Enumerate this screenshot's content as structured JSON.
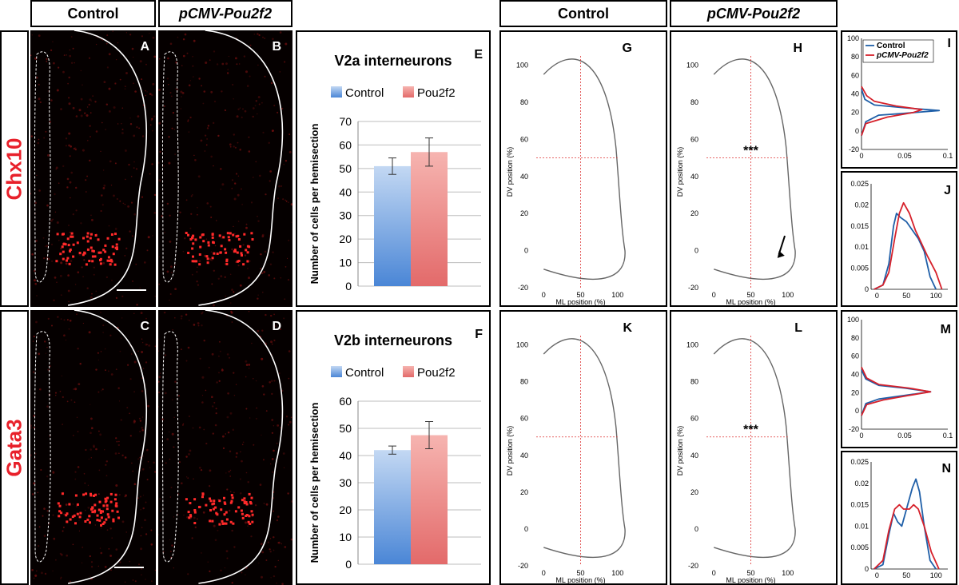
{
  "headers": {
    "micro_control": "Control",
    "micro_pou2f2": "pCMV-Pou2f2",
    "density_control": "Control",
    "density_pou2f2": "pCMV-Pou2f2"
  },
  "rows": {
    "top": "Chx10",
    "bottom": "Gata3"
  },
  "panels": {
    "A": "A",
    "B": "B",
    "C": "C",
    "D": "D",
    "E": "E",
    "F": "F",
    "G": "G",
    "H": "H",
    "I": "I",
    "J": "J",
    "K": "K",
    "L": "L",
    "M": "M",
    "N": "N"
  },
  "colors": {
    "control": "#4a86d6",
    "pou2f2": "#e36a6a",
    "red_label": "#e8202a",
    "line_control": "#1f5fa8",
    "line_pou2f2": "#d6202a"
  },
  "chart_data": [
    {
      "id": "E",
      "type": "bar",
      "title": "V2a interneurons",
      "categories": [
        "Control",
        "Pou2f2"
      ],
      "legend": [
        "Control",
        "Pou2f2"
      ],
      "values": [
        51,
        57
      ],
      "errors": [
        3.5,
        6
      ],
      "ylabel": "Number of cells per hemisection",
      "ylim": [
        0,
        70
      ],
      "yticks": [
        "0",
        "10",
        "20",
        "30",
        "40",
        "50",
        "60",
        "70"
      ]
    },
    {
      "id": "F",
      "type": "bar",
      "title": "V2b interneurons",
      "categories": [
        "Control",
        "Pou2f2"
      ],
      "legend": [
        "Control",
        "Pou2f2"
      ],
      "values": [
        42,
        47.5
      ],
      "errors": [
        1.5,
        5
      ],
      "ylabel": "Number of cells per hemisection",
      "ylim": [
        0,
        60
      ],
      "yticks": [
        "0",
        "10",
        "20",
        "30",
        "40",
        "50",
        "60"
      ]
    },
    {
      "id": "density",
      "type": "heatmap",
      "xlabel": "ML position (%)",
      "ylabel": "DV position (%)",
      "xticks": [
        "0",
        "50",
        "100"
      ],
      "yticks": [
        "-20",
        "0",
        "20",
        "40",
        "60",
        "80",
        "100"
      ],
      "annotation": "***"
    },
    {
      "id": "I",
      "type": "line",
      "series": [
        {
          "name": "Control",
          "points": [
            [
              0,
              -5
            ],
            [
              0.005,
              10
            ],
            [
              0.02,
              17
            ],
            [
              0.05,
              19
            ],
            [
              0.09,
              22
            ],
            [
              0.05,
              25
            ],
            [
              0.015,
              28
            ],
            [
              0.004,
              34
            ],
            [
              0,
              45
            ]
          ]
        },
        {
          "name": "pCMV-Pou2f2",
          "points": [
            [
              0,
              -5
            ],
            [
              0.005,
              8
            ],
            [
              0.03,
              15
            ],
            [
              0.06,
              20
            ],
            [
              0.07,
              23
            ],
            [
              0.04,
              27
            ],
            [
              0.015,
              32
            ],
            [
              0.006,
              38
            ],
            [
              0,
              48
            ]
          ]
        }
      ],
      "xticks": [
        "0",
        "0.05",
        "0.1"
      ],
      "yticks": [
        "-20",
        "0",
        "20",
        "40",
        "60",
        "80",
        "100"
      ],
      "xlim": [
        0,
        0.1
      ],
      "ylim": [
        -20,
        100
      ]
    },
    {
      "id": "J",
      "type": "line",
      "series": [
        {
          "name": "Control",
          "points": [
            [
              -5,
              0
            ],
            [
              10,
              0.001
            ],
            [
              20,
              0.006
            ],
            [
              28,
              0.015
            ],
            [
              33,
              0.018
            ],
            [
              40,
              0.017
            ],
            [
              50,
              0.016
            ],
            [
              60,
              0.014
            ],
            [
              70,
              0.012
            ],
            [
              80,
              0.009
            ],
            [
              90,
              0.003
            ],
            [
              100,
              0.0
            ]
          ]
        },
        {
          "name": "pCMV-Pou2f2",
          "points": [
            [
              -5,
              0
            ],
            [
              10,
              0.001
            ],
            [
              20,
              0.004
            ],
            [
              30,
              0.012
            ],
            [
              38,
              0.018
            ],
            [
              45,
              0.0205
            ],
            [
              55,
              0.018
            ],
            [
              65,
              0.014
            ],
            [
              75,
              0.011
            ],
            [
              85,
              0.008
            ],
            [
              100,
              0.004
            ],
            [
              110,
              0.0
            ]
          ]
        }
      ],
      "xticks": [
        "0",
        "50",
        "100"
      ],
      "yticks": [
        "0",
        "0.005",
        "0.01",
        "0.015",
        "0.02",
        "0.025"
      ],
      "xlim": [
        -10,
        120
      ],
      "ylim": [
        0,
        0.025
      ]
    },
    {
      "id": "M",
      "type": "line",
      "series": [
        {
          "name": "Control",
          "points": [
            [
              0,
              -5
            ],
            [
              0.005,
              8
            ],
            [
              0.02,
              13
            ],
            [
              0.05,
              17
            ],
            [
              0.08,
              21
            ],
            [
              0.05,
              25
            ],
            [
              0.02,
              28
            ],
            [
              0.005,
              35
            ],
            [
              0,
              45
            ]
          ]
        },
        {
          "name": "pCMV-Pou2f2",
          "points": [
            [
              0,
              -5
            ],
            [
              0.006,
              7
            ],
            [
              0.025,
              12
            ],
            [
              0.055,
              17
            ],
            [
              0.08,
              21
            ],
            [
              0.055,
              25
            ],
            [
              0.02,
              29
            ],
            [
              0.006,
              36
            ],
            [
              0,
              48
            ]
          ]
        }
      ],
      "xticks": [
        "0",
        "0.05",
        "0.1"
      ],
      "yticks": [
        "-20",
        "0",
        "20",
        "40",
        "60",
        "80",
        "100"
      ],
      "xlim": [
        0,
        0.1
      ],
      "ylim": [
        -20,
        100
      ]
    },
    {
      "id": "N",
      "type": "line",
      "series": [
        {
          "name": "Control",
          "points": [
            [
              -5,
              0
            ],
            [
              10,
              0.001
            ],
            [
              20,
              0.008
            ],
            [
              28,
              0.013
            ],
            [
              35,
              0.011
            ],
            [
              42,
              0.01
            ],
            [
              50,
              0.014
            ],
            [
              60,
              0.019
            ],
            [
              66,
              0.021
            ],
            [
              72,
              0.018
            ],
            [
              80,
              0.01
            ],
            [
              90,
              0.002
            ],
            [
              100,
              0
            ]
          ]
        },
        {
          "name": "pCMV-Pou2f2",
          "points": [
            [
              -5,
              0
            ],
            [
              10,
              0.002
            ],
            [
              20,
              0.009
            ],
            [
              30,
              0.014
            ],
            [
              38,
              0.015
            ],
            [
              45,
              0.014
            ],
            [
              55,
              0.014
            ],
            [
              62,
              0.015
            ],
            [
              70,
              0.014
            ],
            [
              80,
              0.01
            ],
            [
              92,
              0.004
            ],
            [
              105,
              0
            ]
          ]
        }
      ],
      "xticks": [
        "0",
        "50",
        "100"
      ],
      "yticks": [
        "0",
        "0.005",
        "0.01",
        "0.015",
        "0.02",
        "0.025"
      ],
      "xlim": [
        -10,
        120
      ],
      "ylim": [
        0,
        0.025
      ]
    }
  ]
}
